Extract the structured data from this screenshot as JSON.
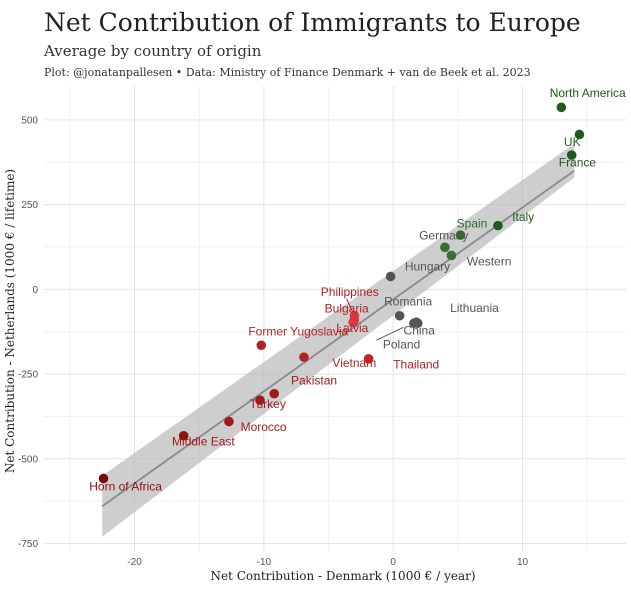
{
  "header": {
    "title": "Net Contribution of Immigrants to Europe",
    "subtitle": "Average by country of origin",
    "caption": "Plot: @jonatanpallesen • Data: Ministry of Finance Denmark + van de Beek et al. 2023"
  },
  "chart_data": {
    "type": "scatter",
    "title": "Net Contribution of Immigrants to Europe",
    "subtitle": "Average by country of origin",
    "xlabel": "Net Contribution - Denmark (1000 € / year)",
    "ylabel": "Net Contribution - Netherlands (1000 € / lifetime)",
    "xlim": [
      -27,
      18
    ],
    "ylim": [
      -775,
      600
    ],
    "xticks": [
      -20,
      -10,
      0,
      10
    ],
    "yticks": [
      500,
      250,
      0,
      -250,
      -500,
      -750
    ],
    "xtick_labels": [
      "-20",
      "-10",
      "0",
      "10"
    ],
    "ytick_labels": [
      "500",
      "250",
      "0",
      "-250",
      "-500",
      "-750"
    ],
    "grid": true,
    "trend": {
      "type": "linear fit with confidence band",
      "x": [
        -22.5,
        14
      ],
      "y": [
        -640,
        350
      ],
      "band_halfwidth": [
        90,
        20
      ]
    },
    "colors": {
      "Europe/West": "#1e5c1e",
      "Central": "#555555",
      "East": "#c0262b",
      "Darkred": "#8b1111"
    },
    "points": [
      {
        "name": "North America",
        "x": 13.0,
        "y": 537,
        "color": "#1e5c1e"
      },
      {
        "name": "UK",
        "x": 14.4,
        "y": 457,
        "color": "#1e5c1e"
      },
      {
        "name": "France",
        "x": 13.8,
        "y": 396,
        "color": "#1e5c1e"
      },
      {
        "name": "Italy",
        "x": 8.1,
        "y": 188,
        "color": "#1e5c1e"
      },
      {
        "name": "Spain",
        "x": 5.2,
        "y": 160,
        "color": "#2d6a2d"
      },
      {
        "name": "Germany",
        "x": 4.0,
        "y": 124,
        "color": "#3a6b3a"
      },
      {
        "name": "Western",
        "x": 4.5,
        "y": 100,
        "color": "#3a6b3a"
      },
      {
        "name": "Hungary",
        "x": -0.2,
        "y": 38,
        "color": "#555555"
      },
      {
        "name": "Romania",
        "x": 0.5,
        "y": -78,
        "color": "#555555"
      },
      {
        "name": "Lithuania",
        "x": 1.8,
        "y": -97,
        "color": "#555555"
      },
      {
        "name": "China",
        "x": 1.6,
        "y": -100,
        "color": "#555555"
      },
      {
        "name": "Poland",
        "x": 1.9,
        "y": -100,
        "color": "#555555"
      },
      {
        "name": "Philippines",
        "x": -3.0,
        "y": -78,
        "color": "#d63a3f"
      },
      {
        "name": "Bulgaria",
        "x": -3.0,
        "y": -90,
        "color": "#d63a3f"
      },
      {
        "name": "Latvia",
        "x": -3.1,
        "y": -97,
        "color": "#d63a3f"
      },
      {
        "name": "Thailand",
        "x": -1.9,
        "y": -205,
        "color": "#c0262b"
      },
      {
        "name": "Vietnam",
        "x": -6.9,
        "y": -200,
        "color": "#b22222"
      },
      {
        "name": "Former Yugoslavia",
        "x": -10.2,
        "y": -165,
        "color": "#b22222"
      },
      {
        "name": "Pakistan",
        "x": -9.2,
        "y": -308,
        "color": "#a01a1a"
      },
      {
        "name": "Turkey",
        "x": -10.3,
        "y": -327,
        "color": "#a01a1a"
      },
      {
        "name": "Morocco",
        "x": -12.7,
        "y": -390,
        "color": "#a01a1a"
      },
      {
        "name": "Middle East",
        "x": -16.2,
        "y": -432,
        "color": "#8b1111"
      },
      {
        "name": "Horn of Africa",
        "x": -22.4,
        "y": -558,
        "color": "#7a0a0a"
      }
    ],
    "labels": [
      {
        "text": "North America",
        "x": 12.1,
        "y": 567,
        "color": "#1e5c1e"
      },
      {
        "text": "UK",
        "x": 13.2,
        "y": 423,
        "color": "#1e5c1e"
      },
      {
        "text": "France",
        "x": 12.8,
        "y": 363,
        "color": "#1e5c1e"
      },
      {
        "text": "Italy",
        "x": 9.2,
        "y": 201,
        "color": "#1e5c1e"
      },
      {
        "text": "Spain",
        "x": 4.9,
        "y": 183,
        "color": "#2d6a2d"
      },
      {
        "text": "Germany",
        "x": 2.0,
        "y": 147,
        "color": "#555555"
      },
      {
        "text": "Western",
        "x": 5.7,
        "y": 71,
        "color": "#555555"
      },
      {
        "text": "Hungary",
        "x": 0.9,
        "y": 56,
        "color": "#555555"
      },
      {
        "text": "Romania",
        "x": -0.7,
        "y": -47,
        "color": "#555555"
      },
      {
        "text": "Lithuania",
        "x": 4.4,
        "y": -67,
        "color": "#555555"
      },
      {
        "text": "China",
        "x": 0.8,
        "y": -133,
        "color": "#555555"
      },
      {
        "text": "Poland",
        "x": -0.8,
        "y": -175,
        "color": "#555555"
      },
      {
        "text": "Philippines",
        "x": -5.6,
        "y": -19,
        "color": "#b22222"
      },
      {
        "text": "Bulgaria",
        "x": -5.3,
        "y": -68,
        "color": "#b22222"
      },
      {
        "text": "Latvia",
        "x": -4.4,
        "y": -126,
        "color": "#b22222"
      },
      {
        "text": "Thailand",
        "x": 0.0,
        "y": -233,
        "color": "#b22222"
      },
      {
        "text": "Vietnam",
        "x": -4.7,
        "y": -229,
        "color": "#b22222"
      },
      {
        "text": "Former Yugoslavia",
        "x": -11.2,
        "y": -136,
        "color": "#b22222"
      },
      {
        "text": "Pakistan",
        "x": -7.9,
        "y": -281,
        "color": "#a01a1a"
      },
      {
        "text": "Turkey",
        "x": -11.1,
        "y": -350,
        "color": "#a01a1a"
      },
      {
        "text": "Morocco",
        "x": -11.8,
        "y": -418,
        "color": "#a01a1a"
      },
      {
        "text": "Middle East",
        "x": -17.1,
        "y": -461,
        "color": "#a01a1a"
      },
      {
        "text": "Horn of Africa",
        "x": -23.5,
        "y": -594,
        "color": "#8b1111"
      }
    ]
  }
}
